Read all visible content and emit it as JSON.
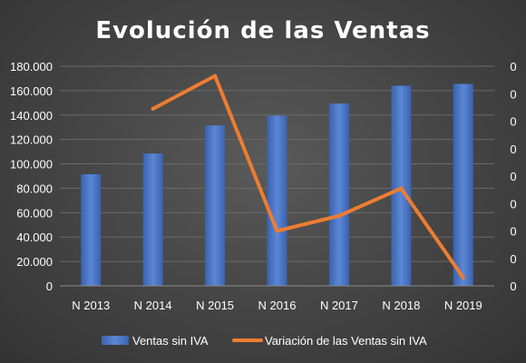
{
  "chart_data": {
    "type": "bar",
    "title": "Evolución de las Ventas",
    "categories": [
      "N 2013",
      "N 2014",
      "N 2015",
      "N 2016",
      "N 2017",
      "N 2018",
      "N 2019"
    ],
    "y_ticks": [
      "0",
      "20.000",
      "40.000",
      "60.000",
      "80.000",
      "100.000",
      "120.000",
      "140.000",
      "160.000",
      "180.000"
    ],
    "ylim": [
      0,
      180000
    ],
    "y2_ticks": [
      "0",
      "0",
      "0",
      "0",
      "0",
      "0",
      "0",
      "0",
      "0"
    ],
    "y2lim": [
      0,
      0.16
    ],
    "grid": true,
    "legend_position": "bottom",
    "series": [
      {
        "name": "Ventas sin IVA",
        "type": "bar",
        "axis": "left",
        "color": "#4472c4",
        "values": [
          91500,
          108500,
          131500,
          139500,
          149500,
          164000,
          165500
        ]
      },
      {
        "name": "Variación de las Ventas sin IVA",
        "type": "line",
        "axis": "right",
        "color": "#ed7d31",
        "values": [
          null,
          0.129,
          0.153,
          0.04,
          0.051,
          0.071,
          0.006
        ]
      }
    ]
  }
}
